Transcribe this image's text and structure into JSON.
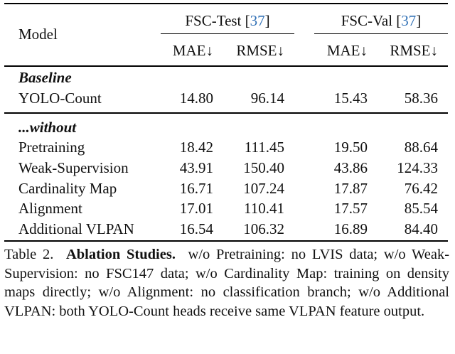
{
  "table": {
    "model_header": "Model",
    "group_headers": [
      {
        "name": "FSC-Test",
        "citation": "37"
      },
      {
        "name": "FSC-Val",
        "citation": "37"
      }
    ],
    "metric_headers": [
      "MAE↓",
      "RMSE↓",
      "MAE↓",
      "RMSE↓"
    ],
    "sections": [
      {
        "title": "Baseline",
        "rows": [
          {
            "model": "YOLO-Count",
            "values": [
              "14.80",
              "96.14",
              "15.43",
              "58.36"
            ]
          }
        ]
      },
      {
        "title": "...without",
        "rows": [
          {
            "model": "Pretraining",
            "values": [
              "18.42",
              "111.45",
              "19.50",
              "88.64"
            ]
          },
          {
            "model": "Weak-Supervision",
            "values": [
              "43.91",
              "150.40",
              "43.86",
              "124.33"
            ]
          },
          {
            "model": "Cardinality Map",
            "values": [
              "16.71",
              "107.24",
              "17.87",
              "76.42"
            ]
          },
          {
            "model": "Alignment",
            "values": [
              "17.01",
              "110.41",
              "17.57",
              "85.54"
            ]
          },
          {
            "model": "Additional VLPAN",
            "values": [
              "16.54",
              "106.32",
              "16.89",
              "84.40"
            ]
          }
        ]
      }
    ]
  },
  "caption": {
    "label": "Table 2.",
    "title": "Ablation Studies.",
    "text": "w/o Pretraining: no LVIS data; w/o Weak-Supervision: no FSC147 data; w/o Cardinality Map: training on density maps directly; w/o Alignment: no classification branch; w/o Additional VLPAN: both YOLO-Count heads receive same VLPAN feature output."
  }
}
